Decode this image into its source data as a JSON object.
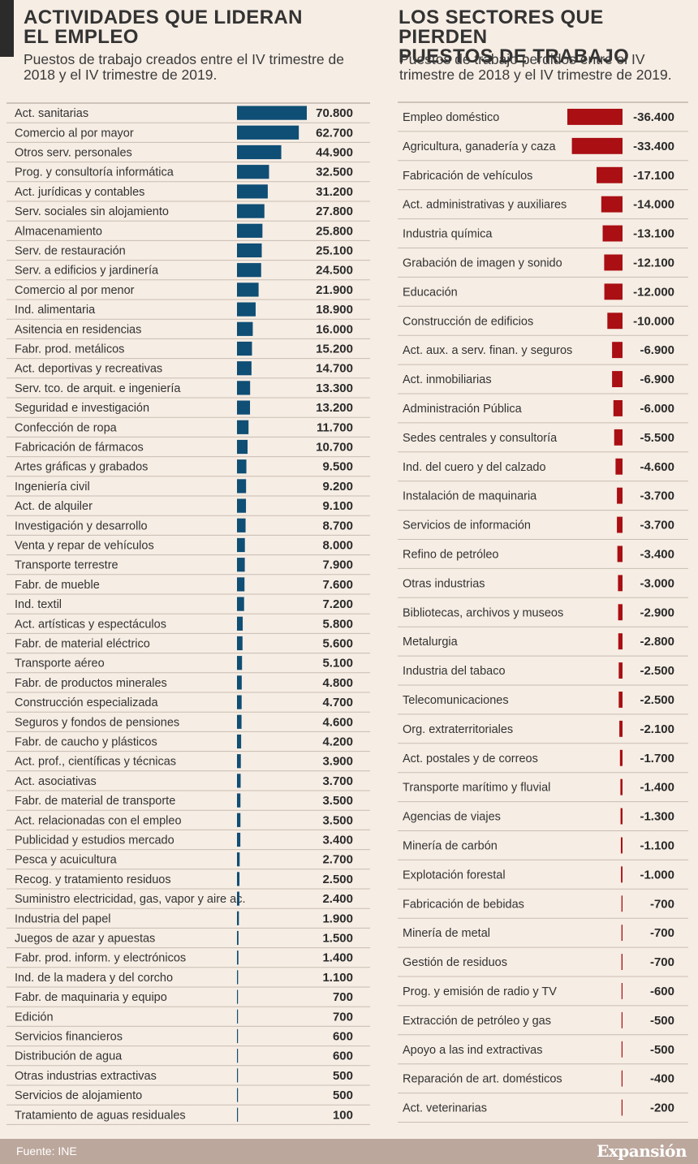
{
  "left_chart": {
    "title": "ACTIVIDADES QUE LIDERAN\nEL EMPLEO",
    "subtitle": "Puestos de trabajo creados entre el IV trimestre de\n2018 y el IV trimestre de 2019."
  },
  "right_chart": {
    "title": "LOS SECTORES QUE PIERDEN\nPUESTOS DE TRABAJO",
    "subtitle": "Puestos de trabajo perdidos entre el IV\ntrimestre de 2018 y el IV trimestre de 2019."
  },
  "footer": {
    "source": "Fuente: INE",
    "brand": "Expansión"
  },
  "colors": {
    "positive_bar": "#0f4e75",
    "negative_bar": "#a90f13",
    "background": "#f6ede4",
    "footer": "#bca79c"
  },
  "chart_data": [
    {
      "type": "bar",
      "orientation": "horizontal",
      "categories": [
        "Act. sanitarias",
        "Comercio al por mayor",
        "Otros serv. personales",
        "Prog. y consultoría informática",
        "Act. jurídicas y contables",
        "Serv. sociales sin alojamiento",
        "Almacenamiento",
        "Serv. de restauración",
        "Serv. a edificios y jardinería",
        "Comercio al por menor",
        "Ind. alimentaria",
        "Asitencia en residencias",
        "Fabr. prod. metálicos",
        "Act. deportivas y recreativas",
        "Serv. tco. de arquit. e ingeniería",
        "Seguridad e investigación",
        "Confección de ropa",
        "Fabricación de fármacos",
        "Artes gráficas y grabados",
        "Ingeniería civil",
        "Act. de alquiler",
        "Investigación y desarrollo",
        "Venta y repar de vehículos",
        "Transporte terrestre",
        "Fabr. de mueble",
        "Ind. textil",
        "Act. artísticas y espectáculos",
        "Fabr. de material eléctrico",
        "Transporte aéreo",
        "Fabr. de productos minerales",
        "Construcción especializada",
        "Seguros y fondos de pensiones",
        "Fabr. de caucho y plásticos",
        "Act. prof., científicas y técnicas",
        "Act. asociativas",
        "Fabr. de material de transporte",
        "Act. relacionadas con el empleo",
        "Publicidad y estudios mercado",
        "Pesca y acuicultura",
        "Recog. y tratamiento residuos",
        "Suministro electricidad, gas, vapor y aire ac.",
        "Industria del papel",
        "Juegos de azar y apuestas",
        "Fabr. prod. inform. y electrónicos",
        "Ind. de la madera y del corcho",
        "Fabr. de maquinaria y equipo",
        "Edición",
        "Servicios financieros",
        "Distribución de agua",
        "Otras industrias extractivas",
        "Servicios de alojamiento",
        "Tratamiento de aguas residuales"
      ],
      "values": [
        70800,
        62700,
        44900,
        32500,
        31200,
        27800,
        25800,
        25100,
        24500,
        21900,
        18900,
        16000,
        15200,
        14700,
        13300,
        13200,
        11700,
        10700,
        9500,
        9200,
        9100,
        8700,
        8000,
        7900,
        7600,
        7200,
        5800,
        5600,
        5100,
        4800,
        4700,
        4600,
        4200,
        3900,
        3700,
        3500,
        3500,
        3400,
        2700,
        2500,
        2400,
        1900,
        1500,
        1400,
        1100,
        700,
        700,
        600,
        600,
        500,
        500,
        100
      ],
      "labels": [
        "70.800",
        "62.700",
        "44.900",
        "32.500",
        "31.200",
        "27.800",
        "25.800",
        "25.100",
        "24.500",
        "21.900",
        "18.900",
        "16.000",
        "15.200",
        "14.700",
        "13.300",
        "13.200",
        "11.700",
        "10.700",
        "9.500",
        "9.200",
        "9.100",
        "8.700",
        "8.000",
        "7.900",
        "7.600",
        "7.200",
        "5.800",
        "5.600",
        "5.100",
        "4.800",
        "4.700",
        "4.600",
        "4.200",
        "3.900",
        "3.700",
        "3.500",
        "3.500",
        "3.400",
        "2.700",
        "2.500",
        "2.400",
        "1.900",
        "1.500",
        "1.400",
        "1.100",
        "700",
        "700",
        "600",
        "600",
        "500",
        "500",
        "100"
      ]
    },
    {
      "type": "bar",
      "orientation": "horizontal",
      "categories": [
        "Empleo doméstico",
        "Agricultura, ganadería y caza",
        "Fabricación de vehículos",
        "Act. administrativas y auxiliares",
        "Industria química",
        "Grabación de imagen y sonido",
        "Educación",
        "Construcción de edificios",
        "Act. aux. a serv. finan. y seguros",
        "Act. inmobiliarias",
        "Administración Pública",
        "Sedes centrales y consultoría",
        "Ind. del cuero y del calzado",
        "Instalación de maquinaria",
        "Servicios de información",
        "Refino de petróleo",
        "Otras industrias",
        "Bibliotecas, archivos y museos",
        "Metalurgia",
        "Industria del tabaco",
        "Telecomunicaciones",
        "Org. extraterritoriales",
        "Act. postales y de correos",
        "Transporte marítimo y fluvial",
        "Agencias de viajes",
        "Minería de carbón",
        "Explotación forestal",
        "Fabricación de bebidas",
        "Minería de metal",
        "Gestión de residuos",
        "Prog. y emisión de radio y TV",
        "Extracción de petróleo y gas",
        "Apoyo a las ind extractivas",
        "Reparación de art. domésticos",
        "Act. veterinarias"
      ],
      "values": [
        -36400,
        -33400,
        -17100,
        -14000,
        -13100,
        -12100,
        -12000,
        -10000,
        -6900,
        -6900,
        -6000,
        -5500,
        -4600,
        -3700,
        -3700,
        -3400,
        -3000,
        -2900,
        -2800,
        -2500,
        -2500,
        -2100,
        -1700,
        -1400,
        -1300,
        -1100,
        -1000,
        -700,
        -700,
        -700,
        -600,
        -500,
        -500,
        -400,
        -200
      ],
      "labels": [
        "-36.400",
        "-33.400",
        "-17.100",
        "-14.000",
        "-13.100",
        "-12.100",
        "-12.000",
        "-10.000",
        "-6.900",
        "-6.900",
        "-6.000",
        "-5.500",
        "-4.600",
        "-3.700",
        "-3.700",
        "-3.400",
        "-3.000",
        "-2.900",
        "-2.800",
        "-2.500",
        "-2.500",
        "-2.100",
        "-1.700",
        "-1.400",
        "-1.300",
        "-1.100",
        "-1.000",
        "-700",
        "-700",
        "-700",
        "-600",
        "-500",
        "-500",
        "-400",
        "-200"
      ]
    }
  ]
}
